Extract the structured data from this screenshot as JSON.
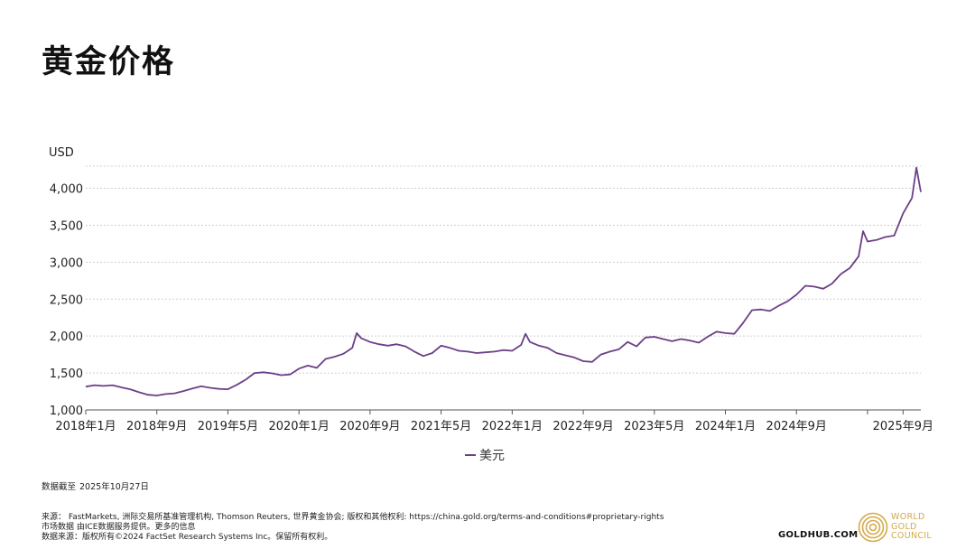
{
  "page": {
    "title": "黄金价格"
  },
  "chart_data": {
    "type": "line",
    "ylabel": "USD",
    "ylim": [
      1000,
      4300
    ],
    "yticks": [
      1000,
      1500,
      2000,
      2500,
      3000,
      3500,
      4000
    ],
    "ytick_labels": [
      "1,000",
      "1,500",
      "2,000",
      "2,500",
      "3,000",
      "3,500",
      "4,000"
    ],
    "x_ticks": [
      {
        "month": 0,
        "label": "2018年1月"
      },
      {
        "month": 8,
        "label": "2018年9月"
      },
      {
        "month": 16,
        "label": "2019年5月"
      },
      {
        "month": 24,
        "label": "2020年1月"
      },
      {
        "month": 32,
        "label": "2020年9月"
      },
      {
        "month": 40,
        "label": "2021年5月"
      },
      {
        "month": 48,
        "label": "2022年1月"
      },
      {
        "month": 56,
        "label": "2022年9月"
      },
      {
        "month": 64,
        "label": "2023年5月"
      },
      {
        "month": 72,
        "label": "2024年1月"
      },
      {
        "month": 80,
        "label": "2024年9月"
      },
      {
        "month": 88,
        "label": ""
      },
      {
        "month": 92,
        "label": "2025年9月"
      }
    ],
    "grid": true,
    "legend": "bottom-center",
    "series": [
      {
        "name": "美元",
        "color": "#6b3f87",
        "points": [
          [
            0,
            1315
          ],
          [
            1,
            1335
          ],
          [
            2,
            1325
          ],
          [
            3,
            1335
          ],
          [
            4,
            1305
          ],
          [
            5,
            1280
          ],
          [
            6,
            1240
          ],
          [
            7,
            1205
          ],
          [
            8,
            1195
          ],
          [
            9,
            1215
          ],
          [
            10,
            1225
          ],
          [
            11,
            1255
          ],
          [
            12,
            1290
          ],
          [
            13,
            1320
          ],
          [
            14,
            1300
          ],
          [
            15,
            1285
          ],
          [
            16,
            1280
          ],
          [
            17,
            1340
          ],
          [
            18,
            1410
          ],
          [
            19,
            1500
          ],
          [
            20,
            1510
          ],
          [
            21,
            1495
          ],
          [
            22,
            1470
          ],
          [
            23,
            1480
          ],
          [
            24,
            1560
          ],
          [
            25,
            1600
          ],
          [
            26,
            1570
          ],
          [
            27,
            1690
          ],
          [
            28,
            1720
          ],
          [
            29,
            1760
          ],
          [
            30,
            1840
          ],
          [
            30.5,
            2040
          ],
          [
            31,
            1970
          ],
          [
            32,
            1920
          ],
          [
            33,
            1890
          ],
          [
            34,
            1870
          ],
          [
            35,
            1890
          ],
          [
            36,
            1860
          ],
          [
            37,
            1790
          ],
          [
            38,
            1730
          ],
          [
            39,
            1770
          ],
          [
            40,
            1870
          ],
          [
            41,
            1840
          ],
          [
            42,
            1800
          ],
          [
            43,
            1790
          ],
          [
            44,
            1770
          ],
          [
            45,
            1780
          ],
          [
            46,
            1790
          ],
          [
            47,
            1810
          ],
          [
            48,
            1800
          ],
          [
            49,
            1880
          ],
          [
            49.5,
            2030
          ],
          [
            50,
            1920
          ],
          [
            51,
            1870
          ],
          [
            52,
            1840
          ],
          [
            53,
            1770
          ],
          [
            54,
            1740
          ],
          [
            55,
            1710
          ],
          [
            56,
            1660
          ],
          [
            57,
            1650
          ],
          [
            58,
            1750
          ],
          [
            59,
            1790
          ],
          [
            60,
            1820
          ],
          [
            61,
            1920
          ],
          [
            62,
            1860
          ],
          [
            63,
            1980
          ],
          [
            64,
            1990
          ],
          [
            65,
            1960
          ],
          [
            66,
            1930
          ],
          [
            67,
            1960
          ],
          [
            68,
            1940
          ],
          [
            69,
            1910
          ],
          [
            70,
            1990
          ],
          [
            71,
            2060
          ],
          [
            72,
            2040
          ],
          [
            73,
            2030
          ],
          [
            74,
            2180
          ],
          [
            75,
            2350
          ],
          [
            76,
            2360
          ],
          [
            77,
            2340
          ],
          [
            78,
            2410
          ],
          [
            79,
            2470
          ],
          [
            80,
            2560
          ],
          [
            81,
            2680
          ],
          [
            82,
            2670
          ],
          [
            83,
            2640
          ],
          [
            84,
            2710
          ],
          [
            85,
            2840
          ],
          [
            86,
            2920
          ],
          [
            87,
            3080
          ],
          [
            87.5,
            3420
          ],
          [
            88,
            3280
          ],
          [
            89,
            3300
          ],
          [
            90,
            3340
          ],
          [
            91,
            3360
          ],
          [
            92,
            3660
          ],
          [
            93,
            3870
          ],
          [
            93.5,
            4280
          ],
          [
            94,
            3950
          ]
        ]
      }
    ]
  },
  "footer": {
    "asof_label": "数据截至",
    "asof_date": "2025年10月27日",
    "source_line": "来源： FastMarkets, 洲际交易所基准管理机构, Thomson Reuters, 世界黄金协会; 版权和其他权利: https://china.gold.org/terms-and-conditions#proprietary-rights",
    "market_line": "市场数据 由ICE数据服务提供。更多的信息",
    "factset_line": "数据来源：版权所有©2024 FactSet Research Systems Inc。保留所有权利。",
    "brand": "GOLDHUB.COM",
    "logo_line1": "WORLD",
    "logo_line2": "GOLD",
    "logo_line3": "COUNCIL"
  },
  "colors": {
    "line": "#6b3f87",
    "gold": "#d4a94a",
    "grid": "#cfcfcf"
  }
}
